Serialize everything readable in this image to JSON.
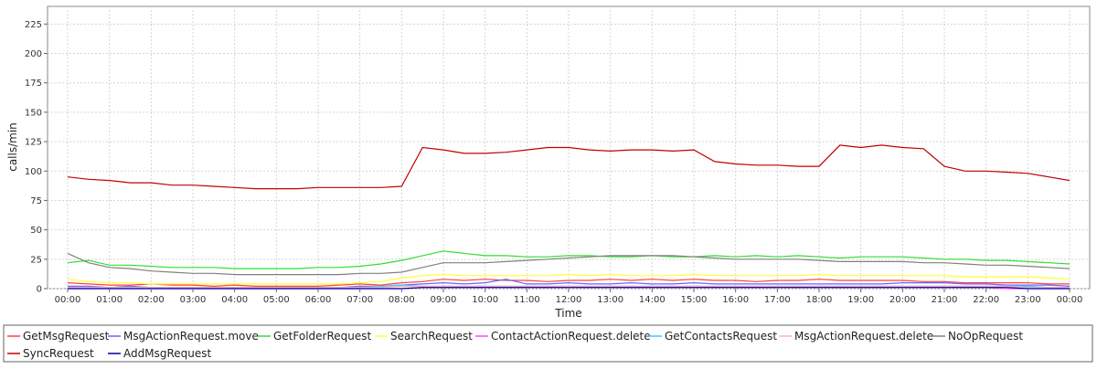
{
  "chart_data": {
    "type": "line",
    "title": "",
    "xlabel": "Time",
    "ylabel": "calls/min",
    "ylim": [
      0,
      240
    ],
    "yticks": [
      0,
      25,
      50,
      75,
      100,
      125,
      150,
      175,
      200,
      225
    ],
    "xlim": [
      0,
      24
    ],
    "x_ticks": [
      {
        "value": 0,
        "label": "00:00"
      },
      {
        "value": 1,
        "label": "01:00"
      },
      {
        "value": 2,
        "label": "02:00"
      },
      {
        "value": 3,
        "label": "03:00"
      },
      {
        "value": 4,
        "label": "04:00"
      },
      {
        "value": 5,
        "label": "05:00"
      },
      {
        "value": 6,
        "label": "06:00"
      },
      {
        "value": 7,
        "label": "07:00"
      },
      {
        "value": 8,
        "label": "08:00"
      },
      {
        "value": 9,
        "label": "09:00"
      },
      {
        "value": 10,
        "label": "10:00"
      },
      {
        "value": 11,
        "label": "11:00"
      },
      {
        "value": 12,
        "label": "12:00"
      },
      {
        "value": 13,
        "label": "13:00"
      },
      {
        "value": 14,
        "label": "14:00"
      },
      {
        "value": 15,
        "label": "15:00"
      },
      {
        "value": 16,
        "label": "16:00"
      },
      {
        "value": 17,
        "label": "17:00"
      },
      {
        "value": 18,
        "label": "18:00"
      },
      {
        "value": 19,
        "label": "19:00"
      },
      {
        "value": 20,
        "label": "20:00"
      },
      {
        "value": 21,
        "label": "21:00"
      },
      {
        "value": 22,
        "label": "22:00"
      },
      {
        "value": 23,
        "label": "23:00"
      },
      {
        "value": 24,
        "label": "00:00"
      }
    ],
    "grid": true,
    "legend_position": "bottom",
    "x": [
      0,
      0.5,
      1,
      1.5,
      2,
      2.5,
      3,
      3.5,
      4,
      4.5,
      5,
      5.5,
      6,
      6.5,
      7,
      7.5,
      8,
      8.5,
      9,
      9.5,
      10,
      10.5,
      11,
      11.5,
      12,
      12.5,
      13,
      13.5,
      14,
      14.5,
      15,
      15.5,
      16,
      16.5,
      17,
      17.5,
      18,
      18.5,
      19,
      19.5,
      20,
      20.5,
      21,
      21.5,
      22,
      22.5,
      23,
      23.5,
      24
    ],
    "series": [
      {
        "name": "GetMsgRequest",
        "color": "#ff4040",
        "values": [
          5,
          4,
          3,
          3,
          4,
          3,
          3,
          2,
          3,
          2,
          2,
          2,
          2,
          3,
          4,
          3,
          5,
          6,
          8,
          7,
          8,
          7,
          7,
          6,
          7,
          7,
          8,
          7,
          8,
          7,
          8,
          7,
          7,
          6,
          7,
          7,
          8,
          7,
          7,
          7,
          7,
          6,
          6,
          5,
          5,
          5,
          5,
          4,
          4
        ]
      },
      {
        "name": "MsgActionRequest.move",
        "color": "#6666ff",
        "values": [
          2,
          2,
          1,
          2,
          1,
          1,
          1,
          1,
          1,
          1,
          1,
          1,
          1,
          1,
          2,
          2,
          3,
          4,
          5,
          4,
          5,
          8,
          4,
          4,
          5,
          4,
          4,
          5,
          4,
          4,
          5,
          4,
          4,
          4,
          4,
          4,
          4,
          4,
          4,
          4,
          5,
          5,
          5,
          4,
          4,
          3,
          3,
          3,
          2
        ]
      },
      {
        "name": "GetFolderRequest",
        "color": "#33dd33",
        "values": [
          22,
          24,
          20,
          20,
          19,
          18,
          18,
          18,
          17,
          17,
          17,
          17,
          18,
          18,
          19,
          21,
          24,
          28,
          32,
          30,
          28,
          28,
          27,
          27,
          28,
          28,
          27,
          27,
          28,
          27,
          27,
          28,
          27,
          28,
          27,
          28,
          27,
          26,
          27,
          27,
          27,
          26,
          25,
          25,
          24,
          24,
          23,
          22,
          21
        ]
      },
      {
        "name": "SearchRequest",
        "color": "#ffff33",
        "values": [
          8,
          6,
          5,
          5,
          4,
          4,
          4,
          4,
          4,
          4,
          4,
          4,
          4,
          4,
          5,
          6,
          9,
          11,
          12,
          11,
          11,
          11,
          11,
          11,
          12,
          11,
          12,
          11,
          11,
          11,
          12,
          11,
          11,
          11,
          11,
          11,
          12,
          11,
          11,
          11,
          11,
          11,
          11,
          10,
          10,
          10,
          10,
          9,
          8
        ]
      },
      {
        "name": "ContactActionRequest.delete",
        "color": "#ff44ff",
        "values": [
          0,
          0,
          0,
          0,
          0,
          0,
          0,
          0,
          0,
          0,
          0,
          0,
          0,
          0,
          0,
          0,
          0,
          1,
          1,
          1,
          1,
          1,
          1,
          1,
          1,
          1,
          1,
          1,
          1,
          1,
          1,
          1,
          1,
          1,
          1,
          1,
          1,
          1,
          1,
          1,
          1,
          1,
          1,
          1,
          1,
          0,
          0,
          0,
          0
        ]
      },
      {
        "name": "GetContactsRequest",
        "color": "#33ccff",
        "values": [
          1,
          1,
          1,
          1,
          1,
          1,
          1,
          1,
          1,
          1,
          1,
          1,
          1,
          1,
          1,
          2,
          3,
          2,
          2,
          2,
          2,
          2,
          2,
          2,
          2,
          2,
          2,
          2,
          2,
          2,
          2,
          2,
          2,
          2,
          2,
          2,
          2,
          2,
          2,
          2,
          2,
          2,
          2,
          2,
          2,
          2,
          2,
          1,
          1
        ]
      },
      {
        "name": "MsgActionRequest.delete",
        "color": "#ffb0b0",
        "values": [
          1,
          1,
          1,
          1,
          1,
          1,
          1,
          1,
          1,
          1,
          1,
          1,
          1,
          1,
          1,
          1,
          2,
          2,
          2,
          2,
          2,
          2,
          2,
          2,
          2,
          2,
          2,
          2,
          2,
          2,
          2,
          2,
          2,
          2,
          2,
          2,
          2,
          2,
          2,
          2,
          2,
          2,
          2,
          2,
          2,
          2,
          1,
          1,
          1
        ]
      },
      {
        "name": "NoOpRequest",
        "color": "#808080",
        "values": [
          30,
          22,
          18,
          17,
          15,
          14,
          13,
          13,
          12,
          12,
          12,
          12,
          12,
          12,
          13,
          13,
          14,
          18,
          22,
          22,
          22,
          23,
          24,
          25,
          26,
          27,
          28,
          28,
          28,
          28,
          27,
          26,
          25,
          25,
          25,
          25,
          24,
          23,
          23,
          23,
          23,
          22,
          22,
          21,
          20,
          20,
          19,
          18,
          17
        ]
      },
      {
        "name": "SyncRequest",
        "color": "#c00000",
        "values": [
          95,
          93,
          92,
          90,
          90,
          88,
          88,
          87,
          86,
          85,
          85,
          85,
          86,
          86,
          86,
          86,
          87,
          120,
          118,
          115,
          115,
          116,
          118,
          120,
          120,
          118,
          117,
          118,
          118,
          117,
          118,
          108,
          106,
          105,
          105,
          104,
          104,
          122,
          120,
          122,
          120,
          119,
          104,
          100,
          100,
          99,
          98,
          95,
          92
        ]
      },
      {
        "name": "AddMsgRequest",
        "color": "#0000a0",
        "values": [
          0,
          0,
          0,
          0,
          0,
          0,
          0,
          0,
          0,
          0,
          0,
          0,
          0,
          0,
          0,
          0,
          0,
          1,
          1,
          1,
          1,
          1,
          1,
          1,
          1,
          1,
          1,
          1,
          1,
          1,
          1,
          1,
          1,
          1,
          1,
          1,
          1,
          1,
          1,
          1,
          1,
          1,
          1,
          1,
          1,
          1,
          0,
          0,
          0
        ]
      }
    ]
  }
}
